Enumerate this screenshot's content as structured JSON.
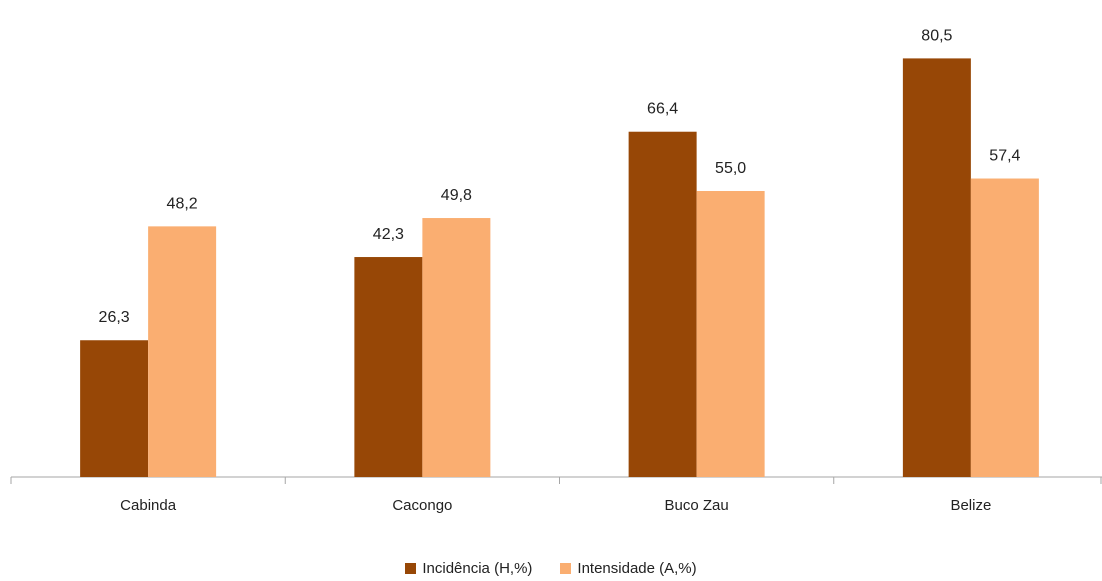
{
  "chart_data": {
    "type": "bar",
    "title": "",
    "xlabel": "",
    "ylabel": "",
    "categories": [
      "Cabinda",
      "Cacongo",
      "Buco Zau",
      "Belize"
    ],
    "series": [
      {
        "name": "Incidência (H,%)",
        "color": "#974706",
        "values": [
          26.3,
          42.3,
          66.4,
          80.5
        ],
        "labels": [
          "26,3",
          "42,3",
          "66,4",
          "80,5"
        ]
      },
      {
        "name": "Intensidade (A,%)",
        "color": "#FAAE71",
        "values": [
          48.2,
          49.8,
          55.0,
          57.4
        ],
        "labels": [
          "48,2",
          "49,8",
          "55,0",
          "57,4"
        ]
      }
    ],
    "ylim": [
      0,
      85
    ],
    "grid": false,
    "y_axis_visible": false,
    "legend_position": "bottom",
    "data_labels": true
  }
}
